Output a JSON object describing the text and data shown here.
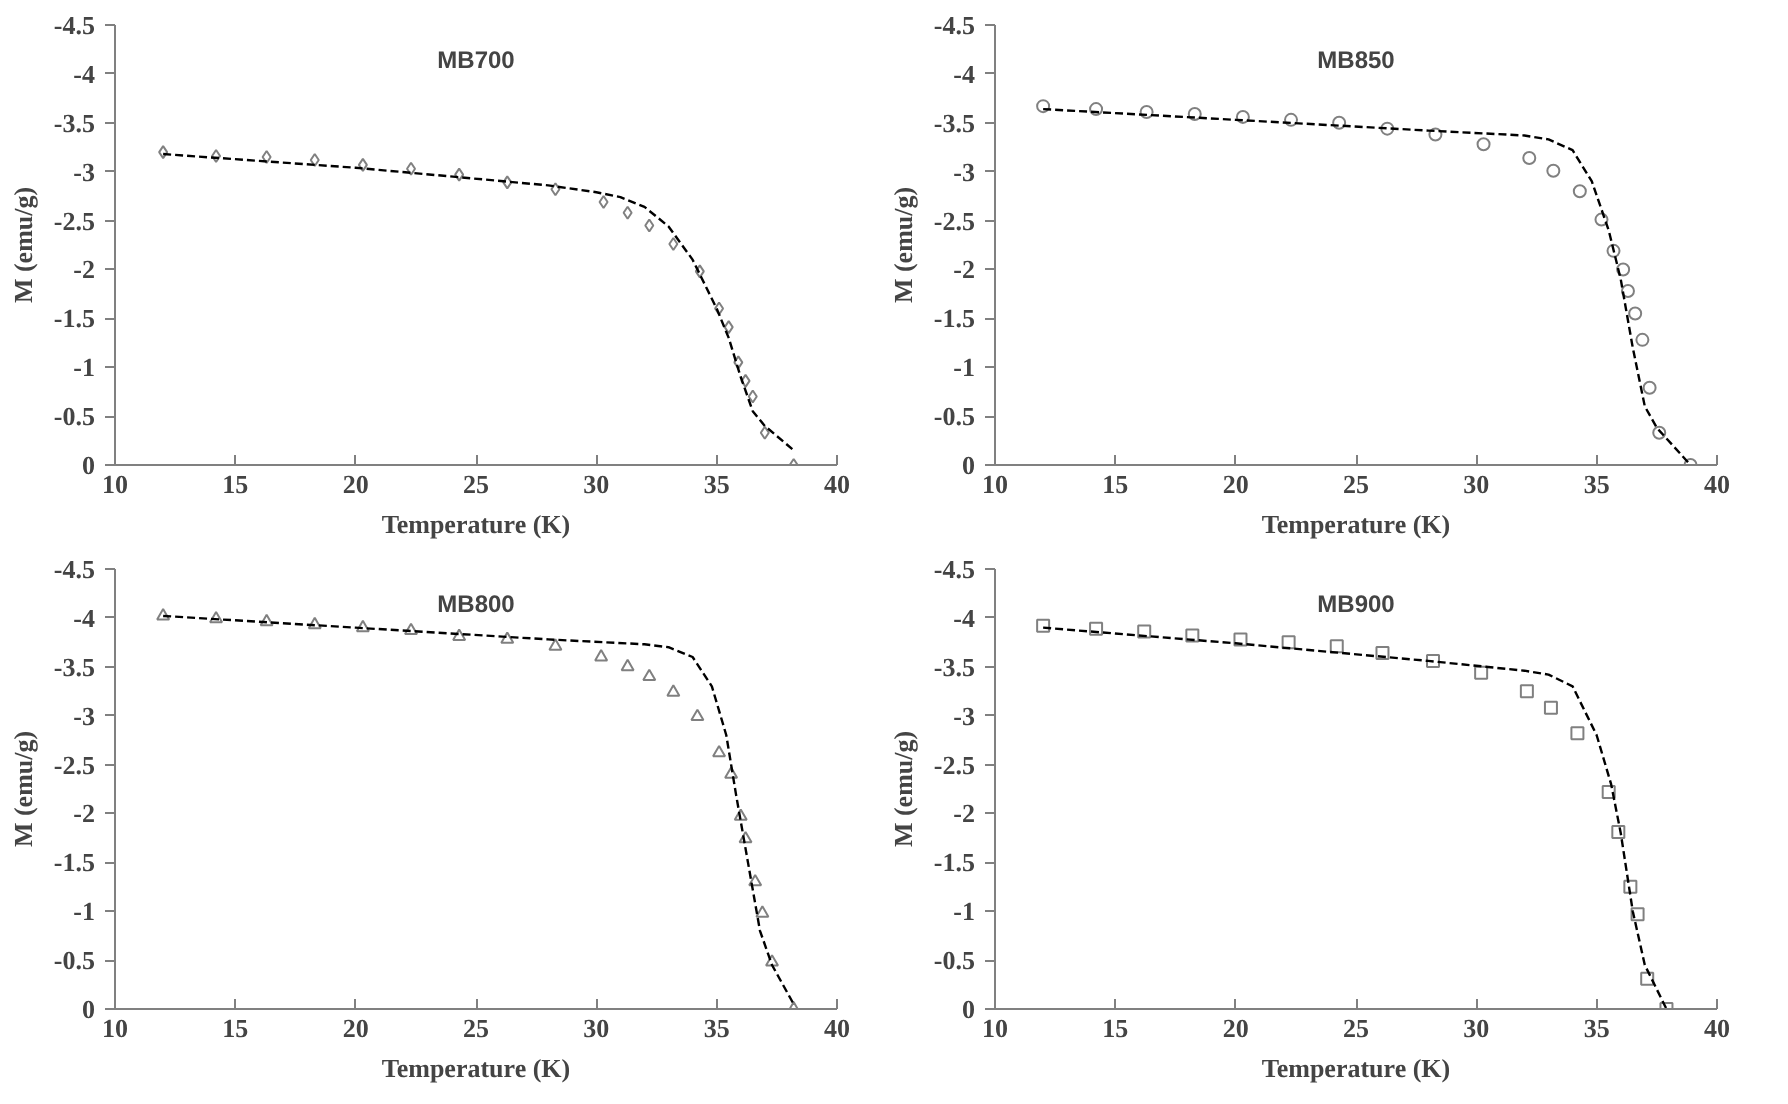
{
  "chart_data": [
    {
      "type": "scatter",
      "title": "MB700",
      "xlabel": "Temperature (K)",
      "ylabel": "M (emu/g)",
      "xlim": [
        10,
        40
      ],
      "ylim": [
        0,
        -4.5
      ],
      "xticks": [
        10,
        15,
        20,
        25,
        30,
        35,
        40
      ],
      "yticks": [
        0,
        -0.5,
        -1,
        -1.5,
        -2,
        -2.5,
        -3,
        -3.5,
        -4,
        -4.5
      ],
      "series": [
        {
          "marker": "diamond",
          "color": "#808080",
          "x": [
            12,
            14.2,
            16.3,
            18.3,
            20.3,
            22.3,
            24.3,
            26.3,
            28.3,
            30.3,
            31.3,
            32.2,
            33.2,
            34.3,
            35.1,
            35.5,
            35.9,
            36.2,
            36.5,
            37,
            38.2
          ],
          "values": [
            -3.2,
            -3.16,
            -3.15,
            -3.12,
            -3.07,
            -3.03,
            -2.97,
            -2.89,
            -2.82,
            -2.69,
            -2.58,
            -2.45,
            -2.26,
            -1.98,
            -1.6,
            -1.41,
            -1.05,
            -0.86,
            -0.7,
            -0.33,
            0
          ]
        },
        {
          "type": "line",
          "line_style": "dashed",
          "color": "#000000",
          "x": [
            12,
            20,
            28,
            30,
            31,
            32,
            33,
            34,
            35,
            35.5,
            36,
            36.5,
            37,
            38.2
          ],
          "values": [
            -3.18,
            -3.04,
            -2.86,
            -2.79,
            -2.74,
            -2.64,
            -2.44,
            -2.1,
            -1.6,
            -1.3,
            -0.9,
            -0.55,
            -0.4,
            -0.15
          ]
        }
      ]
    },
    {
      "type": "scatter",
      "title": "MB850",
      "xlabel": "Temperature (K)",
      "ylabel": "M (emu/g)",
      "xlim": [
        10,
        40
      ],
      "ylim": [
        0,
        -4.5
      ],
      "xticks": [
        10,
        15,
        20,
        25,
        30,
        35,
        40
      ],
      "yticks": [
        0,
        -0.5,
        -1,
        -1.5,
        -2,
        -2.5,
        -3,
        -3.5,
        -4,
        -4.5
      ],
      "series": [
        {
          "marker": "circle",
          "color": "#808080",
          "x": [
            12,
            14.2,
            16.3,
            18.3,
            20.3,
            22.3,
            24.3,
            26.3,
            28.3,
            30.3,
            32.2,
            33.2,
            34.3,
            35.2,
            35.7,
            36.1,
            36.3,
            36.6,
            36.9,
            37.2,
            37.6,
            38.9
          ],
          "values": [
            -3.67,
            -3.64,
            -3.61,
            -3.59,
            -3.56,
            -3.53,
            -3.5,
            -3.44,
            -3.38,
            -3.28,
            -3.14,
            -3.01,
            -2.8,
            -2.51,
            -2.19,
            -2.0,
            -1.78,
            -1.55,
            -1.28,
            -0.79,
            -0.33,
            0
          ]
        },
        {
          "type": "line",
          "line_style": "dashed",
          "color": "#000000",
          "x": [
            12,
            20,
            28,
            32,
            33,
            34,
            34.8,
            35.5,
            36,
            36.5,
            37,
            37.5,
            38.9
          ],
          "values": [
            -3.64,
            -3.53,
            -3.42,
            -3.37,
            -3.33,
            -3.22,
            -2.9,
            -2.4,
            -1.9,
            -1.2,
            -0.6,
            -0.38,
            0
          ]
        }
      ]
    },
    {
      "type": "scatter",
      "title": "MB800",
      "xlabel": "Temperature (K)",
      "ylabel": "M (emu/g)",
      "xlim": [
        10,
        40
      ],
      "ylim": [
        0,
        -4.5
      ],
      "xticks": [
        10,
        15,
        20,
        25,
        30,
        35,
        40
      ],
      "yticks": [
        0,
        -0.5,
        -1,
        -1.5,
        -2,
        -2.5,
        -3,
        -3.5,
        -4,
        -4.5
      ],
      "series": [
        {
          "marker": "triangle",
          "color": "#808080",
          "x": [
            12,
            14.2,
            16.3,
            18.3,
            20.3,
            22.3,
            24.3,
            26.3,
            28.3,
            30.2,
            31.3,
            32.2,
            33.2,
            34.2,
            35.1,
            35.6,
            36,
            36.2,
            36.6,
            36.9,
            37.3,
            38.2
          ],
          "values": [
            -4.02,
            -3.99,
            -3.96,
            -3.93,
            -3.9,
            -3.87,
            -3.81,
            -3.78,
            -3.71,
            -3.6,
            -3.5,
            -3.4,
            -3.24,
            -2.99,
            -2.62,
            -2.4,
            -1.97,
            -1.74,
            -1.3,
            -0.98,
            -0.48,
            0
          ]
        },
        {
          "type": "line",
          "line_style": "dashed",
          "color": "#000000",
          "x": [
            12,
            20,
            28,
            32,
            33,
            34,
            34.8,
            35.4,
            35.8,
            36.3,
            36.8,
            37.3,
            38.2
          ],
          "values": [
            -4.02,
            -3.9,
            -3.78,
            -3.73,
            -3.7,
            -3.6,
            -3.3,
            -2.8,
            -2.2,
            -1.5,
            -0.8,
            -0.45,
            -0.05
          ]
        }
      ]
    },
    {
      "type": "scatter",
      "title": "MB900",
      "xlabel": "Temperature (K)",
      "ylabel": "M (emu/g)",
      "xlim": [
        10,
        40
      ],
      "ylim": [
        0,
        -4.5
      ],
      "xticks": [
        10,
        15,
        20,
        25,
        30,
        35,
        40
      ],
      "yticks": [
        0,
        -0.5,
        -1,
        -1.5,
        -2,
        -2.5,
        -3,
        -3.5,
        -4,
        -4.5
      ],
      "series": [
        {
          "marker": "square",
          "color": "#808080",
          "x": [
            12,
            14.2,
            16.2,
            18.2,
            20.2,
            22.2,
            24.2,
            26.1,
            28.2,
            30.2,
            32.1,
            33.1,
            34.2,
            35.5,
            35.9,
            36.4,
            36.7,
            37.1,
            37.9
          ],
          "values": [
            -3.92,
            -3.89,
            -3.86,
            -3.82,
            -3.78,
            -3.75,
            -3.71,
            -3.64,
            -3.56,
            -3.44,
            -3.25,
            -3.08,
            -2.82,
            -2.22,
            -1.81,
            -1.25,
            -0.97,
            -0.31,
            0
          ]
        },
        {
          "type": "line",
          "line_style": "dashed",
          "color": "#000000",
          "x": [
            12,
            20,
            28,
            32,
            33,
            34,
            35,
            35.6,
            36,
            36.5,
            37,
            37.9
          ],
          "values": [
            -3.9,
            -3.74,
            -3.56,
            -3.46,
            -3.42,
            -3.3,
            -2.8,
            -2.3,
            -1.8,
            -1.0,
            -0.45,
            0
          ]
        }
      ]
    }
  ]
}
